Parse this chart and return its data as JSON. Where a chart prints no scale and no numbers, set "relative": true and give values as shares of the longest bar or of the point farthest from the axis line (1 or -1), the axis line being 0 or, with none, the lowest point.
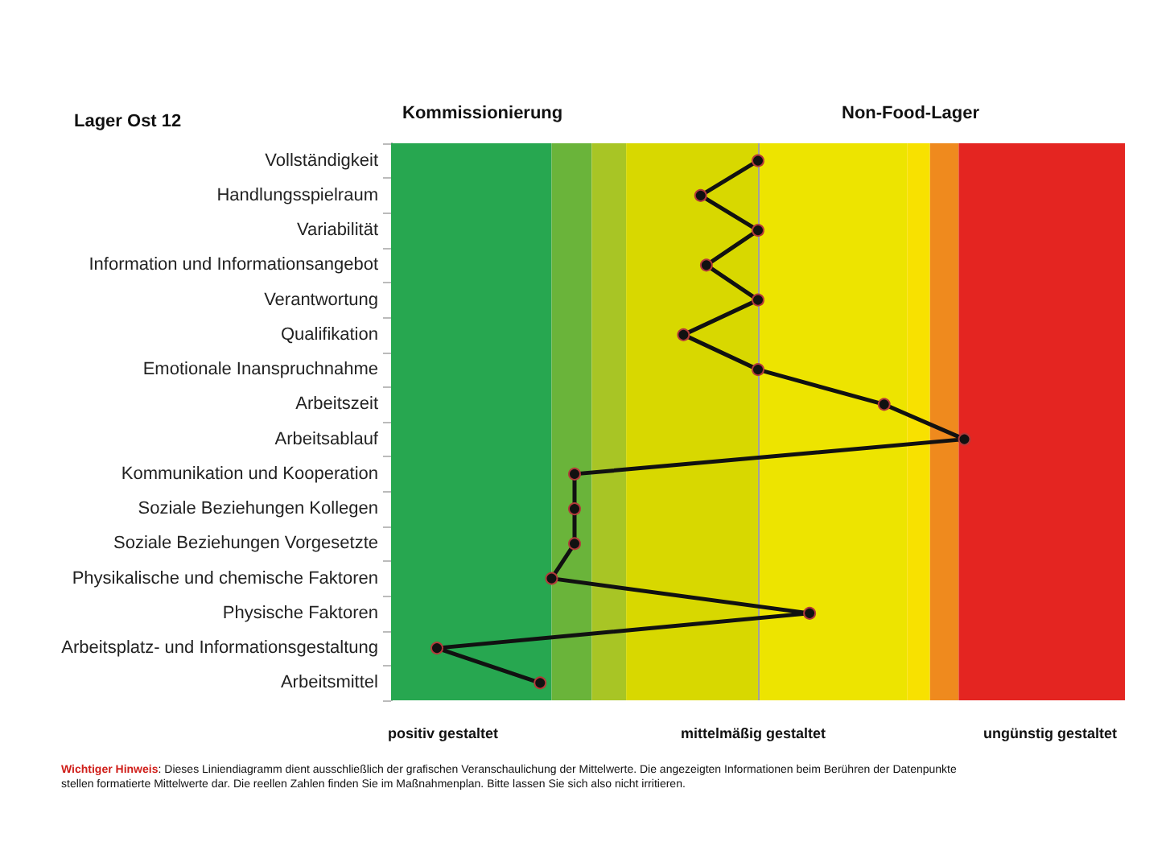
{
  "chart_data": {
    "type": "line",
    "orientation": "horizontal",
    "relative": true,
    "title": "Lager Ost 12",
    "annotations": [
      "Kommissionierung",
      "Non-Food-Lager",
      "positiv gestaltet",
      "mittelmäßig gestaltet",
      "ungünstig gestaltet",
      "Wichtiger Hinweis: Dieses Liniendiagramm dient ausschließlich der grafischen Veranschaulichung der Mittelwerte. Die angezeigten Informationen beim Berühren der Datenpunkte stellen formatierte Mittelwerte dar. Die reellen Zahlen finden Sie im Maßnahmenplan. Bitte lassen Sie sich also nicht irritieren."
    ],
    "categories": [
      "Vollständigkeit",
      "Handlungsspielraum",
      "Variabilität",
      "Information und Informationsangebot",
      "Verantwortung",
      "Qualifikation",
      "Emotionale Inanspruchnahme",
      "Arbeitszeit",
      "Arbeitsablauf",
      "Kommunikation und Kooperation",
      "Soziale Beziehungen Kollegen",
      "Soziale Beziehungen Vorgesetzte",
      "Physikalische und chemische Faktoren",
      "Physische Faktoren",
      "Arbeitsplatz- und Informationsgestaltung",
      "Arbeitsmittel"
    ],
    "series": [
      {
        "color": "#111111",
        "values": [
          0.64,
          0.54,
          0.64,
          0.55,
          0.64,
          0.51,
          0.64,
          0.86,
          1,
          0.32,
          0.32,
          0.32,
          0.28,
          0.73,
          0.08,
          0.26
        ]
      }
    ],
    "bands": [
      {
        "axis": "x",
        "from": 0,
        "to": 0.28,
        "label": null,
        "color": "#27a750"
      },
      {
        "axis": "x",
        "from": 0.28,
        "to": 0.35,
        "label": null,
        "color": "#6ab43a"
      },
      {
        "axis": "x",
        "from": 0.35,
        "to": 0.41,
        "label": null,
        "color": "#a8c525"
      },
      {
        "axis": "x",
        "from": 0.41,
        "to": 0.64,
        "label": null,
        "color": "#d8d800"
      },
      {
        "axis": "x",
        "from": 0.64,
        "to": 0.9,
        "label": null,
        "color": "#ede400"
      },
      {
        "axis": "x",
        "from": 0.9,
        "to": 0.94,
        "label": null,
        "color": "#f8e100"
      },
      {
        "axis": "x",
        "from": 0.94,
        "to": 0.99,
        "label": null,
        "color": "#ef8a1e"
      },
      {
        "axis": "x",
        "from": 0.99,
        "to": 1.28,
        "label": null,
        "color": "#e42521"
      }
    ],
    "ref_lines": [
      {
        "axis": "x",
        "value": 0.64,
        "label": null,
        "color": "#a0a0a0"
      }
    ],
    "grid": false,
    "marker": "circle",
    "line_style": "solid"
  }
}
